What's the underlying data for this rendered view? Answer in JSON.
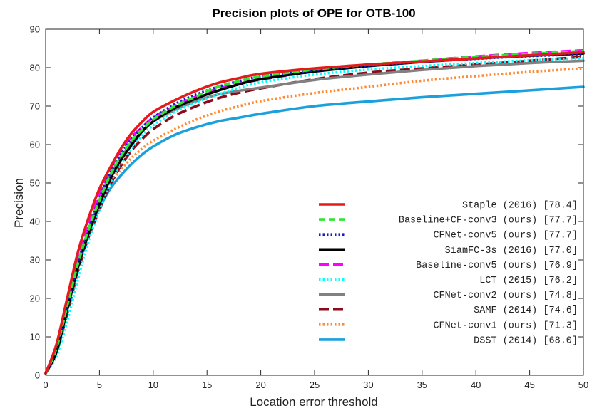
{
  "chart_data": {
    "type": "line",
    "title": "Precision plots of OPE for OTB-100",
    "xlabel": "Location error threshold",
    "ylabel": "Precision",
    "xlim": [
      0,
      50
    ],
    "ylim": [
      0,
      90
    ],
    "xticks": [
      0,
      5,
      10,
      15,
      20,
      25,
      30,
      35,
      40,
      45,
      50
    ],
    "yticks": [
      0,
      10,
      20,
      30,
      40,
      50,
      60,
      70,
      80,
      90
    ],
    "grid": false,
    "legend_position": "bottom-right",
    "x": [
      0,
      1,
      2,
      3,
      4,
      5,
      6,
      7,
      8,
      9,
      10,
      12,
      14,
      16,
      18,
      20,
      25,
      30,
      35,
      40,
      45,
      50
    ],
    "series": [
      {
        "name": "Staple (2016) [78.4]",
        "color": "#e41a1c",
        "dash": "solid",
        "values": [
          0.5,
          8,
          20,
          32,
          41,
          48.5,
          54,
          59,
          63,
          66,
          68.5,
          71.5,
          74,
          76,
          77.3,
          78.4,
          79.8,
          80.8,
          81.6,
          82.4,
          83.2,
          84
        ]
      },
      {
        "name": "Baseline+CF-conv3 (ours) [77.7]",
        "color": "#2ee62e",
        "dash": "dashed",
        "values": [
          0.5,
          7,
          18,
          29,
          38,
          45.5,
          52,
          57,
          61,
          64,
          66.5,
          70,
          72.5,
          75,
          76.5,
          77.7,
          79.5,
          80.8,
          81.8,
          82.8,
          83.6,
          84.3
        ]
      },
      {
        "name": "CFNet-conv5 (ours) [77.7]",
        "color": "#1a1acc",
        "dash": "dotted",
        "values": [
          0.5,
          7,
          18,
          29,
          38,
          46,
          52.5,
          57.5,
          61.5,
          64.5,
          67,
          70.5,
          73,
          75,
          76.5,
          77.7,
          79.3,
          80.5,
          81.5,
          82.3,
          83,
          83.5
        ]
      },
      {
        "name": "SiamFC-3s (2016) [77.0]",
        "color": "#000000",
        "dash": "solid",
        "values": [
          0.5,
          6,
          17,
          28,
          37,
          44.5,
          51,
          56,
          60,
          63.5,
          66,
          69.5,
          72,
          74,
          75.7,
          77,
          79,
          80.4,
          81.5,
          82.4,
          83.1,
          83.7
        ]
      },
      {
        "name": "Baseline-conv5 (ours) [76.9]",
        "color": "#ff00ff",
        "dash": "longdash",
        "values": [
          0.5,
          7,
          18,
          30,
          39,
          47,
          53.5,
          58.5,
          62,
          64.5,
          67,
          70,
          72.5,
          74.5,
          75.8,
          76.9,
          79,
          80.6,
          81.8,
          82.9,
          83.8,
          84.5
        ]
      },
      {
        "name": "LCT (2015) [76.2]",
        "color": "#00ffff",
        "dash": "dotted",
        "values": [
          0.5,
          5,
          14,
          25,
          35,
          43,
          50,
          55,
          59,
          62.5,
          65,
          68.5,
          71,
          73,
          74.8,
          76.2,
          78.2,
          79.5,
          80.4,
          81.2,
          81.9,
          82.5
        ]
      },
      {
        "name": "CFNet-conv2 (ours) [74.8]",
        "color": "#808080",
        "dash": "solid",
        "values": [
          0.5,
          7,
          18,
          29,
          38,
          45.5,
          52,
          56.5,
          60.5,
          63.5,
          66,
          69,
          71.3,
          73,
          74,
          74.8,
          76.8,
          78.2,
          79.4,
          80.4,
          81.2,
          81.8
        ]
      },
      {
        "name": "SAMF (2014) [74.6]",
        "color": "#8b0a1e",
        "dash": "longdash",
        "values": [
          0.5,
          6,
          16,
          27,
          36,
          43,
          49.5,
          54.5,
          58.5,
          61.5,
          64,
          67.5,
          70,
          72,
          73.5,
          74.6,
          77,
          78.7,
          79.8,
          80.8,
          81.8,
          82.8
        ]
      },
      {
        "name": "CFNet-conv1 (ours) [71.3]",
        "color": "#ff8a33",
        "dash": "dotted",
        "values": [
          0.5,
          7,
          18,
          28.5,
          37,
          44,
          49.5,
          53.5,
          56.5,
          59,
          61,
          64,
          66.5,
          68.5,
          70,
          71.3,
          73.4,
          75,
          76.6,
          77.8,
          78.9,
          79.8
        ]
      },
      {
        "name": "DSST (2014) [68.0]",
        "color": "#1aa0dd",
        "dash": "solid",
        "values": [
          0.5,
          7,
          19,
          29.5,
          37.5,
          43.5,
          48.5,
          52,
          55,
          57.5,
          59.5,
          62.5,
          64.5,
          66,
          67,
          68,
          70,
          71.2,
          72.3,
          73.2,
          74.1,
          75
        ]
      }
    ]
  }
}
